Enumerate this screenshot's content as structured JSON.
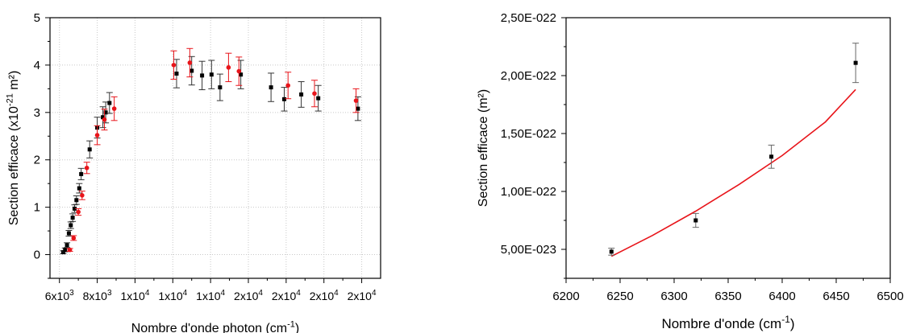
{
  "chart_data": [
    {
      "type": "scatter",
      "xlabel": "Nombre d'onde photon (cm",
      "xlabel_sup": "-1",
      "xlabel_end": ")",
      "ylabel": "Section efficace (x10",
      "ylabel_sup": "-21",
      "ylabel_end": " m²)",
      "xlim": [
        5500,
        23000
      ],
      "ylim": [
        -0.5,
        5
      ],
      "grid": true,
      "x_ticks": [
        {
          "value": 6000,
          "base": "6x10",
          "exp": "3"
        },
        {
          "value": 8000,
          "base": "8x10",
          "exp": "3"
        },
        {
          "value": 10000,
          "base": "1x10",
          "exp": "4"
        },
        {
          "value": 12000,
          "base": "1x10",
          "exp": "4"
        },
        {
          "value": 14000,
          "base": "1x10",
          "exp": "4"
        },
        {
          "value": 16000,
          "base": "2x10",
          "exp": "4"
        },
        {
          "value": 18000,
          "base": "2x10",
          "exp": "4"
        },
        {
          "value": 20000,
          "base": "2x10",
          "exp": "4"
        },
        {
          "value": 22000,
          "base": "2x10",
          "exp": "4"
        }
      ],
      "y_ticks": [
        0,
        1,
        2,
        3,
        4,
        5
      ],
      "series": [
        {
          "color": "#000000",
          "points": [
            [
              6200,
              0.05,
              0.03
            ],
            [
              6300,
              0.1,
              0.04
            ],
            [
              6400,
              0.2,
              0.05
            ],
            [
              6500,
              0.45,
              0.06
            ],
            [
              6600,
              0.62,
              0.07
            ],
            [
              6700,
              0.78,
              0.08
            ],
            [
              6800,
              0.97,
              0.08
            ],
            [
              6900,
              1.15,
              0.09
            ],
            [
              7050,
              1.4,
              0.1
            ],
            [
              7150,
              1.7,
              0.12
            ],
            [
              7600,
              2.22,
              0.18
            ],
            [
              8000,
              2.68,
              0.22
            ],
            [
              8300,
              2.9,
              0.22
            ],
            [
              8450,
              3.0,
              0.22
            ],
            [
              8650,
              3.2,
              0.22
            ],
            [
              12200,
              3.82,
              0.3
            ],
            [
              13000,
              3.88,
              0.3
            ],
            [
              13550,
              3.78,
              0.3
            ],
            [
              14050,
              3.8,
              0.3
            ],
            [
              14500,
              3.53,
              0.28
            ],
            [
              15600,
              3.8,
              0.3
            ],
            [
              17200,
              3.53,
              0.3
            ],
            [
              17900,
              3.28,
              0.25
            ],
            [
              18800,
              3.38,
              0.27
            ],
            [
              19700,
              3.3,
              0.27
            ],
            [
              21800,
              3.08,
              0.25
            ]
          ]
        },
        {
          "color": "#e8141a",
          "points": [
            [
              6550,
              0.1,
              0.03
            ],
            [
              6750,
              0.35,
              0.05
            ],
            [
              7000,
              0.9,
              0.07
            ],
            [
              7200,
              1.25,
              0.09
            ],
            [
              7450,
              1.83,
              0.12
            ],
            [
              8000,
              2.52,
              0.2
            ],
            [
              8380,
              2.85,
              0.22
            ],
            [
              8900,
              3.08,
              0.25
            ],
            [
              12050,
              4.0,
              0.3
            ],
            [
              12900,
              4.05,
              0.3
            ],
            [
              14950,
              3.95,
              0.3
            ],
            [
              15500,
              3.87,
              0.3
            ],
            [
              18100,
              3.57,
              0.28
            ],
            [
              19500,
              3.4,
              0.28
            ],
            [
              21700,
              3.25,
              0.25
            ]
          ]
        }
      ]
    },
    {
      "type": "scatter",
      "xlabel": "Nombre d'onde (cm",
      "xlabel_sup": "-1",
      "xlabel_end": ")",
      "ylabel": "Section efficace (m²)",
      "xlim": [
        6200,
        6500
      ],
      "ylim": [
        2.5e-23,
        2.5e-22
      ],
      "grid": false,
      "x_ticks": [
        {
          "value": 6200,
          "label": "6200"
        },
        {
          "value": 6250,
          "label": "6250"
        },
        {
          "value": 6300,
          "label": "6300"
        },
        {
          "value": 6350,
          "label": "6350"
        },
        {
          "value": 6400,
          "label": "6400"
        },
        {
          "value": 6450,
          "label": "6450"
        },
        {
          "value": 6500,
          "label": "6500"
        }
      ],
      "y_ticks": [
        {
          "value": 5e-23,
          "label": "5,00E-023"
        },
        {
          "value": 1e-22,
          "label": "1,00E-022"
        },
        {
          "value": 1.5e-22,
          "label": "1,50E-022"
        },
        {
          "value": 2e-22,
          "label": "2,00E-022"
        },
        {
          "value": 2.5e-22,
          "label": "2,50E-022"
        }
      ],
      "points": [
        [
          6242,
          4.8e-23,
          3e-24
        ],
        [
          6320,
          7.5e-23,
          6e-24
        ],
        [
          6390,
          1.3e-22,
          1e-23
        ],
        [
          6468,
          2.11e-22,
          1.7e-23
        ]
      ],
      "fit": {
        "color": "#e8141a",
        "points": [
          [
            6242,
            4.4e-23
          ],
          [
            6280,
            6.2e-23
          ],
          [
            6320,
            8.3e-23
          ],
          [
            6360,
            1.06e-22
          ],
          [
            6400,
            1.31e-22
          ],
          [
            6440,
            1.6e-22
          ],
          [
            6468,
            1.88e-22
          ]
        ]
      }
    }
  ]
}
